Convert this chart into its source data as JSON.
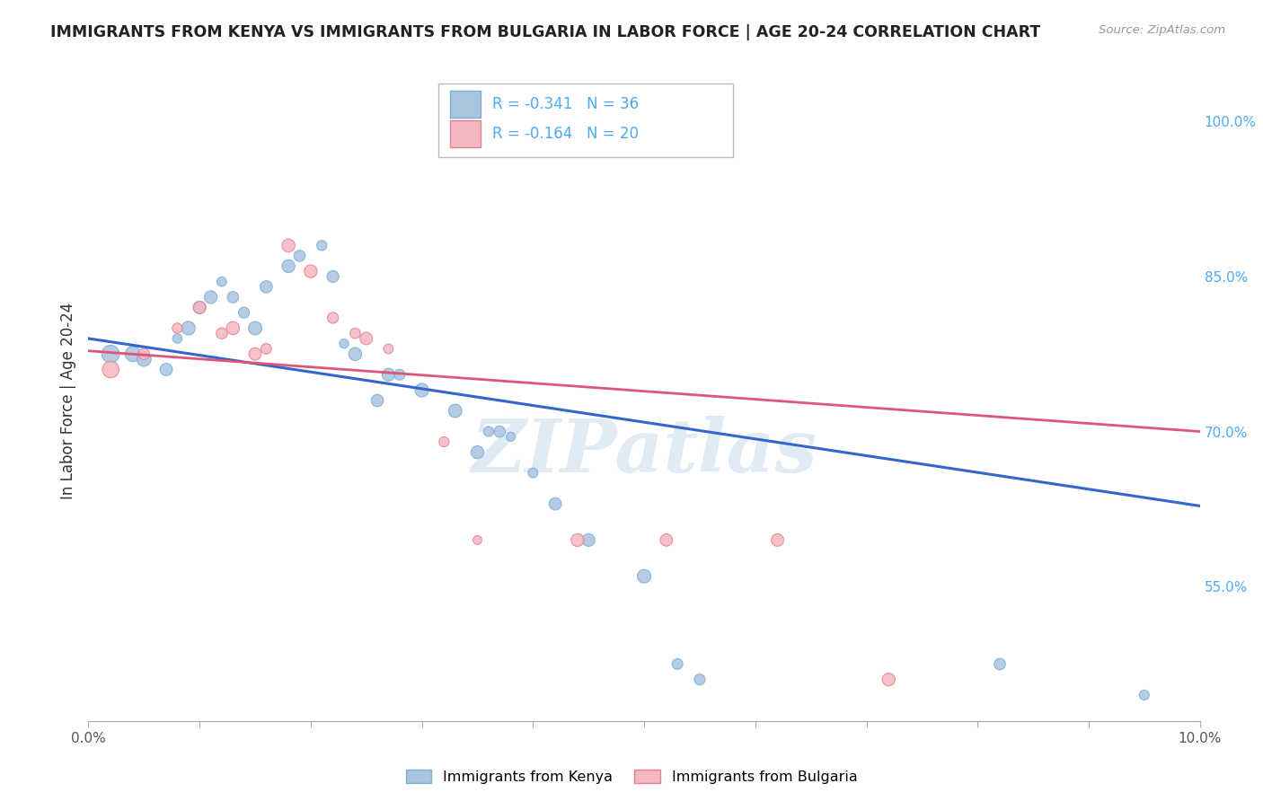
{
  "title": "IMMIGRANTS FROM KENYA VS IMMIGRANTS FROM BULGARIA IN LABOR FORCE | AGE 20-24 CORRELATION CHART",
  "source": "Source: ZipAtlas.com",
  "ylabel": "In Labor Force | Age 20-24",
  "right_yticks": [
    0.55,
    0.7,
    0.85,
    1.0
  ],
  "right_ytick_labels": [
    "55.0%",
    "70.0%",
    "85.0%",
    "100.0%"
  ],
  "kenya_color": "#aac4e0",
  "kenya_color_edge": "#7bafd4",
  "bulgaria_color": "#f4b8c0",
  "bulgaria_color_edge": "#e88090",
  "kenya_R": "-0.341",
  "kenya_N": "36",
  "bulgaria_R": "-0.164",
  "bulgaria_N": "20",
  "kenya_scatter": [
    [
      0.002,
      0.775
    ],
    [
      0.004,
      0.775
    ],
    [
      0.005,
      0.77
    ],
    [
      0.007,
      0.76
    ],
    [
      0.008,
      0.79
    ],
    [
      0.009,
      0.8
    ],
    [
      0.01,
      0.82
    ],
    [
      0.011,
      0.83
    ],
    [
      0.012,
      0.845
    ],
    [
      0.013,
      0.83
    ],
    [
      0.014,
      0.815
    ],
    [
      0.015,
      0.8
    ],
    [
      0.016,
      0.84
    ],
    [
      0.018,
      0.86
    ],
    [
      0.019,
      0.87
    ],
    [
      0.021,
      0.88
    ],
    [
      0.022,
      0.85
    ],
    [
      0.023,
      0.785
    ],
    [
      0.024,
      0.775
    ],
    [
      0.026,
      0.73
    ],
    [
      0.027,
      0.755
    ],
    [
      0.028,
      0.755
    ],
    [
      0.03,
      0.74
    ],
    [
      0.033,
      0.72
    ],
    [
      0.035,
      0.68
    ],
    [
      0.036,
      0.7
    ],
    [
      0.037,
      0.7
    ],
    [
      0.038,
      0.695
    ],
    [
      0.04,
      0.66
    ],
    [
      0.042,
      0.63
    ],
    [
      0.045,
      0.595
    ],
    [
      0.05,
      0.56
    ],
    [
      0.053,
      0.475
    ],
    [
      0.055,
      0.46
    ],
    [
      0.082,
      0.475
    ],
    [
      0.095,
      0.445
    ]
  ],
  "bulgaria_scatter": [
    [
      0.002,
      0.76
    ],
    [
      0.005,
      0.775
    ],
    [
      0.008,
      0.8
    ],
    [
      0.01,
      0.82
    ],
    [
      0.012,
      0.795
    ],
    [
      0.013,
      0.8
    ],
    [
      0.015,
      0.775
    ],
    [
      0.016,
      0.78
    ],
    [
      0.018,
      0.88
    ],
    [
      0.02,
      0.855
    ],
    [
      0.022,
      0.81
    ],
    [
      0.024,
      0.795
    ],
    [
      0.025,
      0.79
    ],
    [
      0.027,
      0.78
    ],
    [
      0.032,
      0.69
    ],
    [
      0.035,
      0.595
    ],
    [
      0.044,
      0.595
    ],
    [
      0.052,
      0.595
    ],
    [
      0.062,
      0.595
    ],
    [
      0.072,
      0.46
    ]
  ],
  "kenya_line_x": [
    0.0,
    0.1
  ],
  "kenya_line_y": [
    0.79,
    0.628
  ],
  "bulgaria_line_x": [
    0.0,
    0.1
  ],
  "bulgaria_line_y": [
    0.778,
    0.7
  ],
  "xlim": [
    0.0,
    0.1
  ],
  "ylim": [
    0.42,
    1.04
  ],
  "watermark": "ZIPatlas",
  "background_color": "#ffffff",
  "grid_color": "#d8d8d8",
  "legend_label_kenya": "Immigrants from Kenya",
  "legend_label_bulgaria": "Immigrants from Bulgaria",
  "right_label_color": "#4dabf7",
  "legend_R_N_color": "#4dabf7"
}
